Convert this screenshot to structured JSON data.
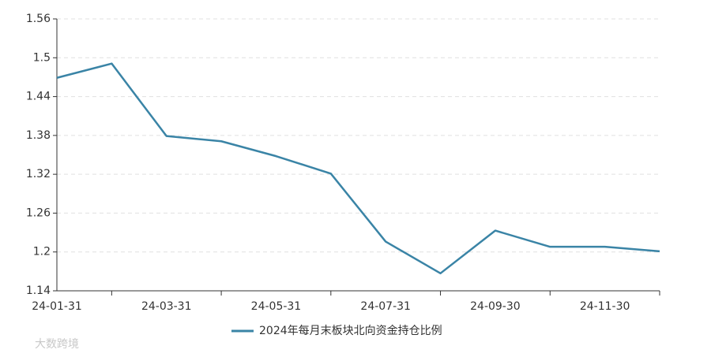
{
  "chart_data": {
    "type": "line",
    "categories": [
      "24-01-31",
      null,
      "24-03-31",
      null,
      "24-05-31",
      null,
      "24-07-31",
      null,
      "24-09-30",
      null,
      "24-11-30",
      null
    ],
    "series": [
      {
        "name": "2024年每月末板块北向资金持仓比例",
        "color": "#3a84a6",
        "values": [
          1.469,
          1.491,
          1.379,
          1.371,
          1.348,
          1.321,
          1.216,
          1.167,
          1.233,
          1.208,
          1.208,
          1.201
        ]
      }
    ],
    "ylim": [
      1.14,
      1.56
    ],
    "yticks": [
      1.14,
      1.2,
      1.26,
      1.32,
      1.38,
      1.44,
      1.5,
      1.56
    ],
    "grid": true,
    "watermark": "大数跨境"
  }
}
